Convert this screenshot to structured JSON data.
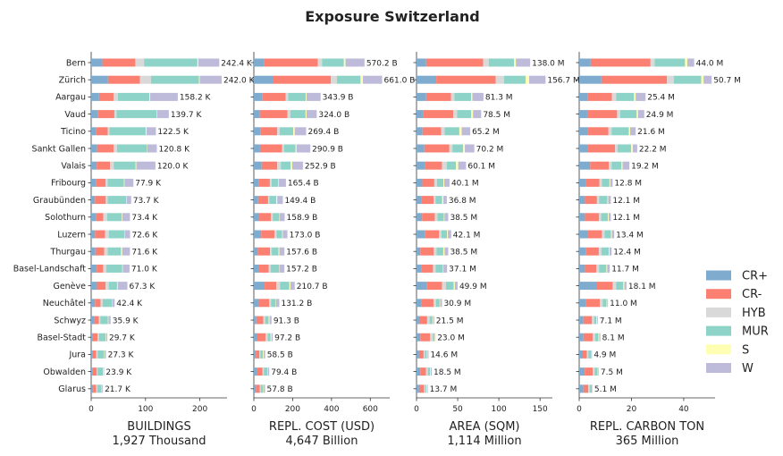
{
  "chart_data": {
    "type": "bar",
    "orientation": "horizontal",
    "stacked": true,
    "title": "Exposure Switzerland",
    "categories": [
      "Bern",
      "Zürich",
      "Aargau",
      "Vaud",
      "Ticino",
      "Sankt Gallen",
      "Valais",
      "Fribourg",
      "Graubünden",
      "Solothurn",
      "Luzern",
      "Thurgau",
      "Basel-Landschaft",
      "Genève",
      "Neuchâtel",
      "Schwyz",
      "Basel-Stadt",
      "Jura",
      "Obwalden",
      "Glarus"
    ],
    "legend": {
      "position": "right",
      "entries": [
        {
          "name": "CR+",
          "color": "#7fabcf"
        },
        {
          "name": "CR-",
          "color": "#fb8072"
        },
        {
          "name": "HYB",
          "color": "#d9d9d9"
        },
        {
          "name": "MUR",
          "color": "#8dd3c7"
        },
        {
          "name": "S",
          "color": "#ffffb3"
        },
        {
          "name": "W",
          "color": "#bebada"
        }
      ]
    },
    "panels": [
      {
        "xlabel": "BUILDINGS",
        "subtitle": "1,927 Thousand",
        "xlim": [
          0,
          250
        ],
        "xticks": [
          0,
          100,
          200
        ],
        "totals": [
          "242.4 K",
          "242.0 K",
          "158.2 K",
          "139.7 K",
          "122.5 K",
          "120.8 K",
          "120.0 K",
          "77.9 K",
          "73.7 K",
          "73.4 K",
          "72.6 K",
          "71.6 K",
          "71.0 K",
          "67.3 K",
          "42.4 K",
          "35.9 K",
          "29.7 K",
          "27.3 K",
          "23.9 K",
          "21.7 K"
        ],
        "stacks": [
          [
            20.7,
            60.6,
            16.0,
            98.2,
            1.7,
            38.5
          ],
          [
            30.9,
            58.8,
            20.4,
            88.4,
            1.2,
            40.4
          ],
          [
            14.6,
            26.5,
            8.1,
            58.1,
            1.3,
            50.8
          ],
          [
            12.1,
            30.6,
            3.9,
            73.5,
            0.9,
            21.8
          ],
          [
            8.7,
            22.0,
            3.0,
            66.6,
            1.6,
            17.2
          ],
          [
            10.9,
            30.7,
            6.0,
            55.2,
            0.7,
            17.3
          ],
          [
            10.1,
            24.8,
            6.5,
            40.4,
            1.3,
            35.1
          ],
          [
            8.5,
            17.9,
            4.0,
            30.0,
            1.0,
            16.3
          ],
          [
            7.0,
            19.9,
            3.5,
            34.0,
            0.7,
            8.5
          ],
          [
            8.8,
            13.6,
            6.9,
            26.7,
            1.1,
            14.2
          ],
          [
            7.1,
            18.6,
            6.7,
            28.5,
            0.7,
            9.9
          ],
          [
            7.8,
            16.4,
            6.3,
            24.5,
            2.1,
            14.2
          ],
          [
            10.1,
            12.0,
            5.7,
            29.5,
            0.9,
            12.4
          ],
          [
            10.6,
            15.7,
            6.1,
            15.2,
            1.3,
            17.7
          ],
          [
            7.0,
            10.2,
            4.0,
            17.4,
            0.7,
            3.9
          ],
          [
            5.1,
            9.2,
            2.5,
            14.1,
            0.9,
            4.0
          ],
          [
            2.6,
            8.9,
            2.8,
            12.4,
            0.9,
            2.0
          ],
          [
            3.1,
            6.2,
            2.7,
            12.1,
            0.8,
            2.4
          ],
          [
            2.7,
            7.5,
            1.5,
            10.1,
            0.8,
            1.1
          ],
          [
            3.4,
            5.8,
            2.1,
            8.0,
            0.8,
            1.4
          ]
        ]
      },
      {
        "xlabel": "REPL. COST (USD)",
        "subtitle": "4,647 Billion",
        "xlim": [
          0,
          700
        ],
        "xticks": [
          0,
          200,
          400,
          600
        ],
        "totals": [
          "570.2 B",
          "661.0 B",
          "343.9 B",
          "324.0 B",
          "269.4 B",
          "290.9 B",
          "252.9 B",
          "165.4 B",
          "149.4 B",
          "158.9 B",
          "173.0 B",
          "157.6 B",
          "157.2 B",
          "210.7 B",
          "131.2 B",
          "91.3 B",
          "97.2 B",
          "58.5 B",
          "79.4 B",
          "57.8 B"
        ],
        "stacks": [
          [
            52.4,
            277.3,
            21.7,
            112.6,
            8.0,
            98.2
          ],
          [
            101.3,
            295.9,
            30.6,
            122.0,
            12.2,
            99.0
          ],
          [
            44.7,
            119.5,
            12.3,
            91.5,
            3.8,
            72.1
          ],
          [
            30.6,
            142.6,
            14.5,
            78.9,
            5.0,
            52.4
          ],
          [
            33.2,
            87.1,
            12.8,
            69.5,
            7.9,
            58.9
          ],
          [
            31.8,
            113.6,
            9.7,
            59.9,
            4.8,
            71.1
          ],
          [
            40.4,
            80.5,
            18.3,
            50.8,
            7.9,
            55.0
          ],
          [
            26.3,
            56.2,
            9.5,
            32.9,
            2.5,
            38.0
          ],
          [
            22.0,
            51.3,
            7.0,
            34.8,
            5.4,
            28.9
          ],
          [
            23.2,
            64.2,
            10.1,
            33.4,
            2.0,
            26.0
          ],
          [
            38.0,
            68.4,
            10.6,
            29.2,
            2.7,
            24.1
          ],
          [
            20.0,
            63.7,
            8.8,
            34.8,
            4.1,
            26.2
          ],
          [
            23.2,
            52.8,
            10.5,
            43.5,
            1.5,
            25.7
          ],
          [
            55.6,
            60.1,
            19.0,
            48.4,
            5.5,
            22.1
          ],
          [
            22.8,
            56.6,
            9.0,
            24.5,
            2.3,
            16.0
          ],
          [
            12.6,
            36.5,
            9.1,
            18.2,
            4.3,
            10.6
          ],
          [
            16.1,
            44.4,
            11.3,
            14.8,
            4.2,
            6.4
          ],
          [
            10.1,
            17.9,
            5.6,
            13.5,
            3.9,
            7.5
          ],
          [
            14.1,
            30.9,
            6.6,
            17.4,
            2.7,
            7.7
          ],
          [
            10.7,
            20.5,
            4.2,
            13.1,
            2.4,
            6.9
          ]
        ]
      },
      {
        "xlabel": "AREA (SQM)",
        "subtitle": "1,114 Million",
        "xlim": [
          0,
          165
        ],
        "xticks": [
          0,
          50,
          100,
          150
        ],
        "totals": [
          "138.0 M",
          "156.7 M",
          "81.3 M",
          "78.5 M",
          "65.2 M",
          "70.2 M",
          "60.1 M",
          "40.1 M",
          "36.8 M",
          "38.5 M",
          "42.1 M",
          "38.5 M",
          "37.1 M",
          "49.9 M",
          "30.9 M",
          "21.5 M",
          "23.0 M",
          "14.6 M",
          "18.5 M",
          "13.7 M"
        ],
        "stacks": [
          [
            11.7,
            69.3,
            6.7,
            30.7,
            2.3,
            17.3
          ],
          [
            24.0,
            72.1,
            10.3,
            26.0,
            4.4,
            19.9
          ],
          [
            11.7,
            30.3,
            4.1,
            20.1,
            1.6,
            13.5
          ],
          [
            8.0,
            36.5,
            4.9,
            17.1,
            2.1,
            9.9
          ],
          [
            7.3,
            22.6,
            4.3,
            17.8,
            2.8,
            10.4
          ],
          [
            9.5,
            30.4,
            3.7,
            13.1,
            2.0,
            11.5
          ],
          [
            10.2,
            20.7,
            5.7,
            11.4,
            2.6,
            9.5
          ],
          [
            7.0,
            14.6,
            3.3,
            7.7,
            1.1,
            6.4
          ],
          [
            6.4,
            14.3,
            2.6,
            7.9,
            1.4,
            4.2
          ],
          [
            6.7,
            15.5,
            3.3,
            7.7,
            0.7,
            4.6
          ],
          [
            10.0,
            17.4,
            2.9,
            6.8,
            1.0,
            4.0
          ],
          [
            4.6,
            16.4,
            3.4,
            8.1,
            1.5,
            4.5
          ],
          [
            6.4,
            13.6,
            3.2,
            8.8,
            0.7,
            4.4
          ],
          [
            12.8,
            18.1,
            4.9,
            9.3,
            1.4,
            3.4
          ],
          [
            6.4,
            14.2,
            3.0,
            4.5,
            0.7,
            2.1
          ],
          [
            3.2,
            9.7,
            3.0,
            3.5,
            0.8,
            1.3
          ],
          [
            4.6,
            11.8,
            3.7,
            1.6,
            0.7,
            0.6
          ],
          [
            3.1,
            5.5,
            1.7,
            2.3,
            0.8,
            1.2
          ],
          [
            4.6,
            7.0,
            2.1,
            2.6,
            0.9,
            1.3
          ],
          [
            3.1,
            6.1,
            1.5,
            1.5,
            0.7,
            0.8
          ]
        ]
      },
      {
        "xlabel": "REPL. CARBON TON",
        "subtitle": "365 Million",
        "xlim": [
          0,
          52
        ],
        "xticks": [
          0,
          20,
          40
        ],
        "totals": [
          "44.0 M",
          "50.7 M",
          "25.4 M",
          "24.9 M",
          "21.6 M",
          "22.2 M",
          "19.2 M",
          "12.8 M",
          "12.1 M",
          "12.1 M",
          "13.4 M",
          "12.4 M",
          "11.7 M",
          "18.1 M",
          "11.0 M",
          "7.1 M",
          "8.1 M",
          "4.9 M",
          "7.5 M",
          "5.1 M"
        ],
        "stacks": [
          [
            4.4,
            22.9,
            1.6,
            11.6,
            0.9,
            2.6
          ],
          [
            8.5,
            25.1,
            2.6,
            10.5,
            0.9,
            3.1
          ],
          [
            3.2,
            9.3,
            1.6,
            6.9,
            0.6,
            3.8
          ],
          [
            3.1,
            11.4,
            1.2,
            6.3,
            0.5,
            2.4
          ],
          [
            3.1,
            8.1,
            1.2,
            6.6,
            0.5,
            2.1
          ],
          [
            3.1,
            10.6,
            1.0,
            5.2,
            0.6,
            1.7
          ],
          [
            4.2,
            7.1,
            1.1,
            3.8,
            0.4,
            2.6
          ],
          [
            2.7,
            5.0,
            1.0,
            2.9,
            0.3,
            0.9
          ],
          [
            2.2,
            4.6,
            0.9,
            3.1,
            0.3,
            1.0
          ],
          [
            2.2,
            5.4,
            0.8,
            2.6,
            0.3,
            0.8
          ],
          [
            3.1,
            5.6,
            1.0,
            2.5,
            0.3,
            0.9
          ],
          [
            2.5,
            5.0,
            1.0,
            2.8,
            0.3,
            0.8
          ],
          [
            2.2,
            4.3,
            1.1,
            2.8,
            0.3,
            1.0
          ],
          [
            6.5,
            6.3,
            1.3,
            2.8,
            0.4,
            0.8
          ],
          [
            2.6,
            5.3,
            1.1,
            1.5,
            0.2,
            0.3
          ],
          [
            1.6,
            3.3,
            0.8,
            0.9,
            0.2,
            0.3
          ],
          [
            1.6,
            3.6,
            0.9,
            1.3,
            0.3,
            0.4
          ],
          [
            1.2,
            1.7,
            0.6,
            1.1,
            0.1,
            0.2
          ],
          [
            2.1,
            3.1,
            0.7,
            1.2,
            0.2,
            0.2
          ],
          [
            1.6,
            1.9,
            0.5,
            0.8,
            0.1,
            0.2
          ]
        ]
      }
    ]
  }
}
